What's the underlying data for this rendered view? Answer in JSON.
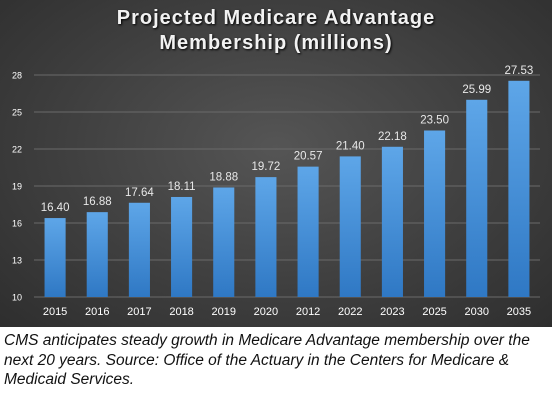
{
  "chart_data": {
    "type": "bar",
    "title_lines": [
      "Projected Medicare Advantage",
      "Membership (millions)"
    ],
    "categories": [
      "2015",
      "2016",
      "2017",
      "2018",
      "2019",
      "2020",
      "2012",
      "2022",
      "2023",
      "2025",
      "2030",
      "2035"
    ],
    "values": [
      16.4,
      16.88,
      17.64,
      18.11,
      18.88,
      19.72,
      20.57,
      21.4,
      22.18,
      23.5,
      25.99,
      27.53
    ],
    "data_labels": [
      "16.40",
      "16.88",
      "17.64",
      "18.11",
      "18.88",
      "19.72",
      "20.57",
      "21.40",
      "22.18",
      "23.50",
      "25.99",
      "27.53"
    ],
    "y_ticks": [
      10,
      13,
      16,
      19,
      22,
      25,
      28
    ],
    "ylim": [
      10,
      28
    ],
    "xlabel": "",
    "ylabel": "",
    "grid": true,
    "legend": "none",
    "colors": {
      "bar_top": "#5ea6e8",
      "bar_bottom": "#2f78c4",
      "grid": "#6a6a6a",
      "tick_text": "#ffffff",
      "label_text": "#e8e8e8"
    }
  },
  "caption": "CMS anticipates steady growth in Medicare Advantage membership over the next 20 years. Source: Office of the Actuary in the Centers for Medicare & Medicaid Services."
}
